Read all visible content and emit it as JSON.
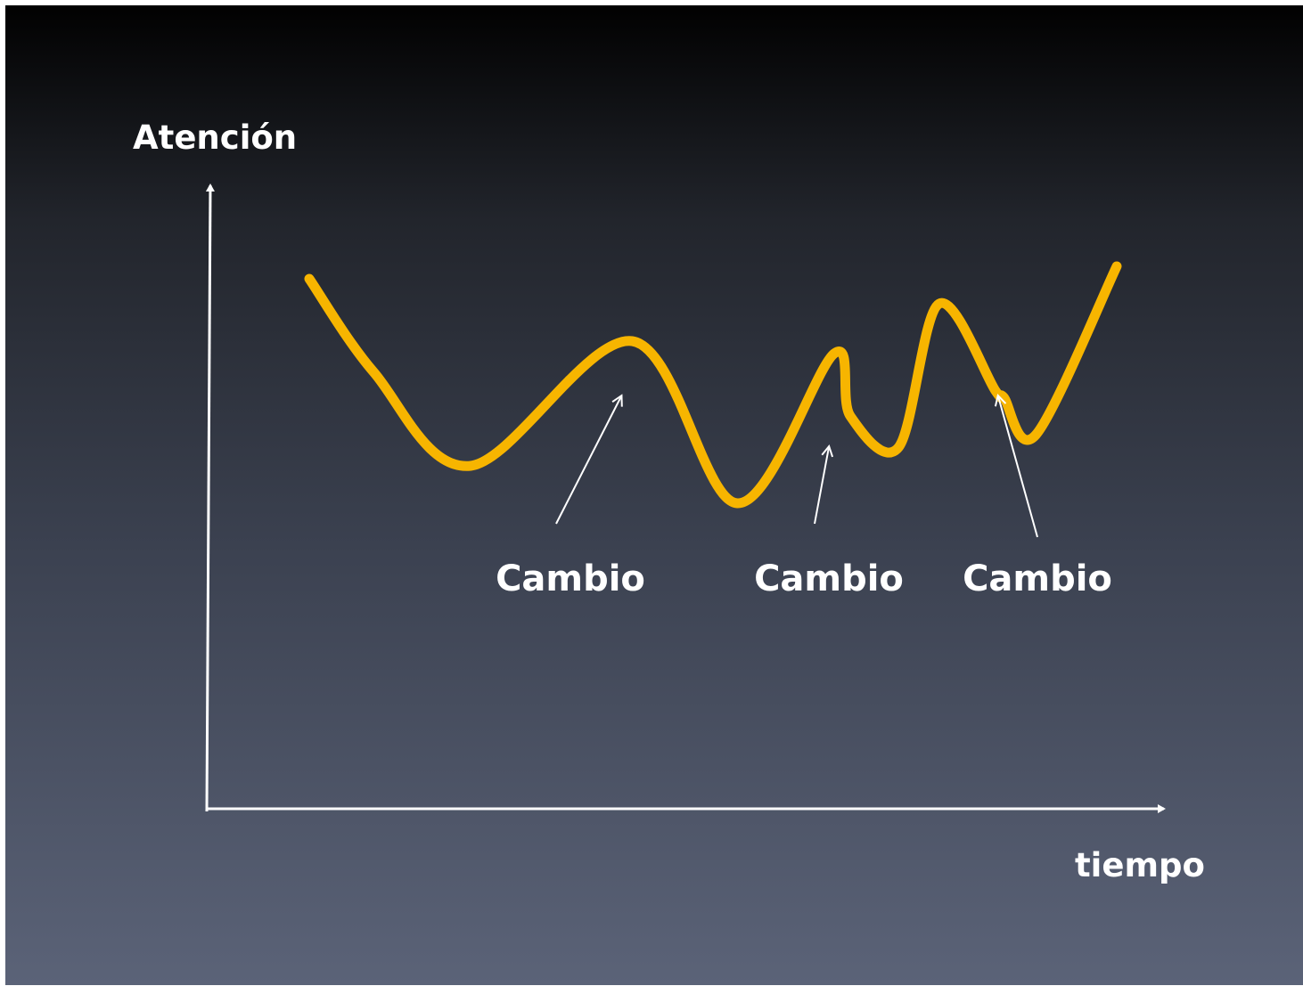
{
  "chart_data": {
    "type": "line",
    "ylabel": "Atención",
    "xlabel": "tiempo",
    "grid": false,
    "legend": "none",
    "x": [
      0,
      0.08,
      0.2,
      0.4,
      0.53,
      0.65,
      0.67,
      0.73,
      0.78,
      0.85,
      0.86,
      0.9,
      1.0
    ],
    "series": [
      {
        "color": "#f7b500",
        "values": [
          0.85,
          0.7,
          0.55,
          0.75,
          0.49,
          0.73,
          0.63,
          0.58,
          0.81,
          0.67,
          0.66,
          0.6,
          0.87
        ]
      }
    ],
    "annotations": [
      {
        "label": "Cambio",
        "x": 0.38
      },
      {
        "label": "Cambio",
        "x": 0.64
      },
      {
        "label": "Cambio",
        "x": 0.85
      }
    ],
    "colors": {
      "line": "#f7b500",
      "axes": "#ffffff",
      "text": "#ffffff"
    }
  }
}
